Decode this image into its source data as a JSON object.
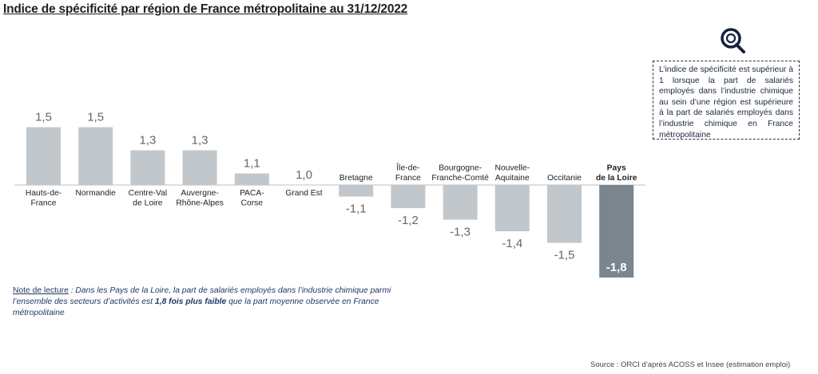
{
  "title": "Indice de spécificité par région de France métropolitaine au 31/12/2022",
  "info_box": "L’indice de spécificité est supérieur à 1 lorsque la part de salariés employés dans l’industrie chimique au sein d’une région est supérieure à la part de salariés employés dans l’industrie chimique en France métropolitaine",
  "note": {
    "label": "Note de lecture",
    "text_before": " : Dans les Pays de la Loire, la part de salariés employés dans l’industrie chimique parmi l’ensemble des secteurs d’activités est ",
    "bold": "1,8 fois plus faible",
    "text_after": " que la part moyenne observée en France métropolitaine"
  },
  "source": "Source : ORCI d’après ACOSS et Insee (estimation emploi)",
  "chart_data": {
    "type": "bar",
    "title": "Indice de spécificité par région de France métropolitaine au 31/12/2022",
    "xlabel": "",
    "ylabel": "",
    "categories": [
      [
        "Hauts-de-",
        "France"
      ],
      [
        "Normandie"
      ],
      [
        "Centre-Val",
        "de Loire"
      ],
      [
        "Auvergne-",
        "Rhône-Alpes"
      ],
      [
        "PACA-",
        "Corse"
      ],
      [
        "Grand Est"
      ],
      [
        "Bretagne"
      ],
      [
        "Île-de-",
        "France"
      ],
      [
        "Bourgogne-",
        "Franche-Comté"
      ],
      [
        "Nouvelle-",
        "Aquitaine"
      ],
      [
        "Occitanie"
      ],
      [
        "Pays",
        "de la Loire"
      ]
    ],
    "values": [
      1.5,
      1.5,
      1.3,
      1.3,
      1.1,
      1.0,
      -1.1,
      -1.2,
      -1.3,
      -1.4,
      -1.5,
      -1.8
    ],
    "value_labels": [
      "1,5",
      "1,5",
      "1,3",
      "1,3",
      "1,1",
      "1,0",
      "-1,1",
      "-1,2",
      "-1,3",
      "-1,4",
      "-1,5",
      "-1,8"
    ],
    "highlight_index": 11,
    "colors": {
      "bar": "#c2c7cb",
      "highlight": "#7a858e",
      "label": "#666666",
      "highlight_label": "#ffffff",
      "axis": "#bfbfbf"
    },
    "grid": false
  }
}
